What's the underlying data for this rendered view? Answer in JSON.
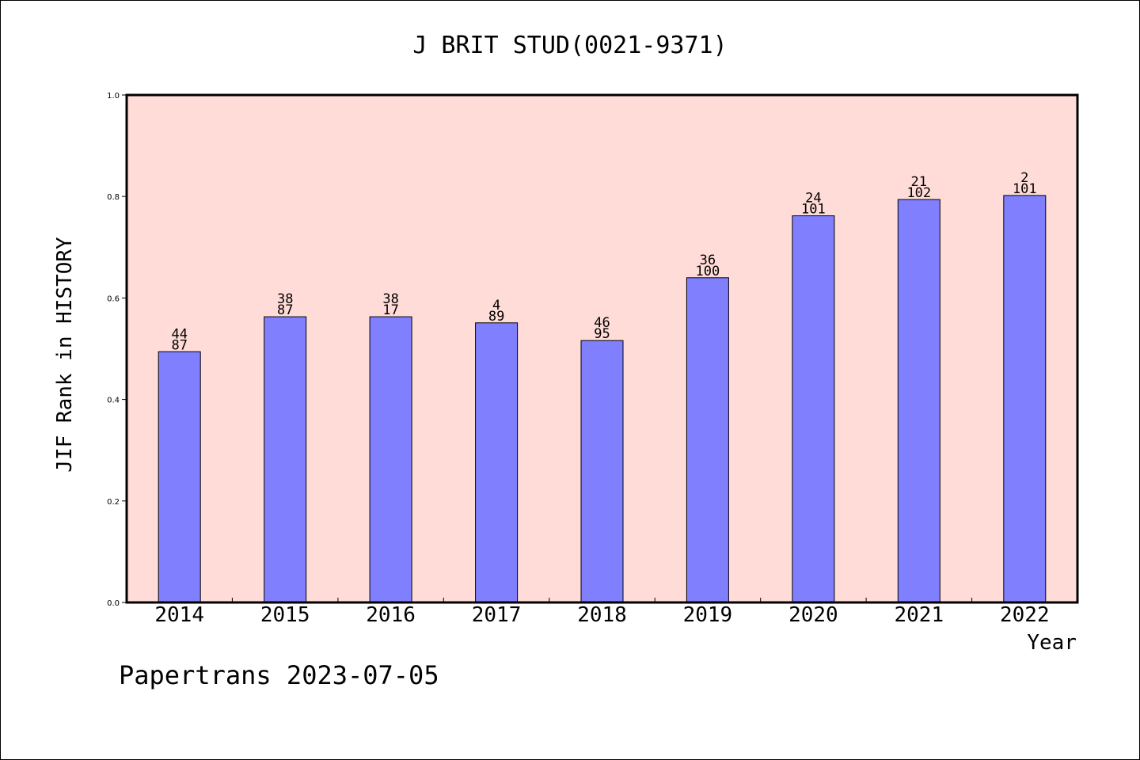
{
  "colors": {
    "plot_background": "#ffdcd8",
    "bar_fill": "#8080ff",
    "bar_stroke": "#000000",
    "frame": "#000000",
    "text": "#000000"
  },
  "chart_data": {
    "type": "bar",
    "title": "J BRIT STUD(0021-9371)",
    "xlabel": "Year",
    "ylabel": "JIF Rank in HISTORY",
    "categories": [
      "2014",
      "2015",
      "2016",
      "2017",
      "2018",
      "2019",
      "2020",
      "2021",
      "2022"
    ],
    "values": [
      0.494,
      0.563,
      0.563,
      0.551,
      0.516,
      0.64,
      0.762,
      0.794,
      0.802
    ],
    "labels_top": [
      "44",
      "38",
      "38",
      "4",
      "46",
      "36",
      "24",
      "21",
      "2"
    ],
    "labels_bottom": [
      "87",
      "87",
      "17",
      "89",
      "95",
      "100",
      "101",
      "102",
      "101"
    ],
    "ylim": [
      0.0,
      1.0
    ],
    "yticks": [
      "0.0",
      "0.2",
      "0.4",
      "0.6",
      "0.8",
      "1.0"
    ],
    "grid": false,
    "legend": "none"
  },
  "footer": {
    "text": "Papertrans 2023-07-05"
  }
}
